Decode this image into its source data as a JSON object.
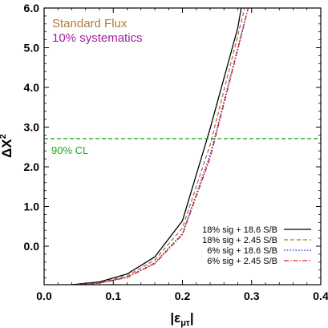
{
  "chart_data": {
    "type": "line",
    "xlabel": "|ε_μτ|",
    "ylabel": "ΔX²",
    "xlim": [
      0.0,
      0.4
    ],
    "ylim": [
      -0.97,
      6.0
    ],
    "xticks": [
      0.0,
      0.1,
      0.2,
      0.3,
      0.4
    ],
    "yticks": [
      0.0,
      1.0,
      2.0,
      3.0,
      4.0,
      5.0,
      6.0
    ],
    "xticks_labels": [
      "0.0",
      "0.1",
      "0.2",
      "0.3",
      "0.4"
    ],
    "yticks_labels": [
      "0.0",
      "1.0",
      "2.0",
      "3.0",
      "4.0",
      "5.0",
      "6.0"
    ],
    "grid": false,
    "legend_position": "bottom-right",
    "annotations": [
      {
        "text": "Standard Flux",
        "color": "#b07a3a"
      },
      {
        "text": "10% systematics",
        "color": "#a020a0"
      },
      {
        "text": "90% CL",
        "color": "#1aa81a"
      }
    ],
    "reference_lines": [
      {
        "orientation": "horizontal",
        "y": 2.71,
        "color": "#1aa81a",
        "style": "dashed"
      }
    ],
    "series": [
      {
        "name": "18% sig + 18.6 S/B",
        "color": "#000000",
        "style": "solid",
        "x": [
          0.0,
          0.04,
          0.08,
          0.12,
          0.16,
          0.2,
          0.24,
          0.28,
          0.285
        ],
        "y": [
          -1.0,
          -0.97,
          -0.9,
          -0.7,
          -0.27,
          0.64,
          2.96,
          5.5,
          6.0
        ]
      },
      {
        "name": "18% sig + 2.45 S/B",
        "color": "#a8763a",
        "style": "dashed",
        "x": [
          0.0,
          0.04,
          0.08,
          0.12,
          0.16,
          0.2,
          0.24,
          0.28,
          0.29
        ],
        "y": [
          -1.0,
          -0.98,
          -0.92,
          -0.75,
          -0.35,
          0.46,
          2.55,
          5.3,
          6.0
        ]
      },
      {
        "name": "6% sig + 18.6 S/B",
        "color": "#2a2ad8",
        "style": "dotted",
        "x": [
          0.0,
          0.04,
          0.08,
          0.12,
          0.16,
          0.2,
          0.24,
          0.28,
          0.295
        ],
        "y": [
          -1.0,
          -0.98,
          -0.93,
          -0.78,
          -0.42,
          0.32,
          2.3,
          5.0,
          6.0
        ]
      },
      {
        "name": "6% sig + 2.45 S/B",
        "color": "#e02020",
        "style": "dashdot",
        "x": [
          0.0,
          0.04,
          0.08,
          0.12,
          0.16,
          0.2,
          0.24,
          0.28,
          0.295
        ],
        "y": [
          -1.0,
          -0.98,
          -0.93,
          -0.79,
          -0.44,
          0.29,
          2.22,
          4.95,
          6.0
        ]
      }
    ]
  }
}
